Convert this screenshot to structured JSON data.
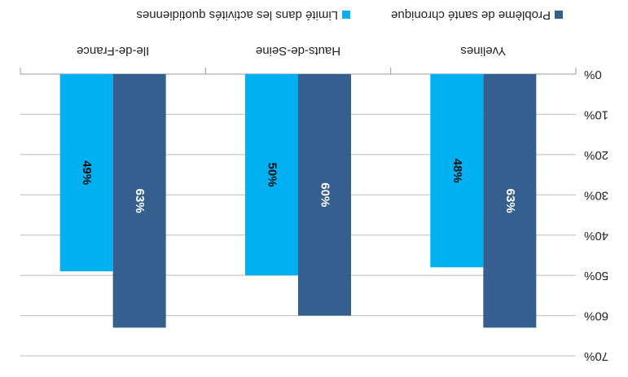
{
  "chart_data": {
    "type": "bar",
    "categories": [
      "Yvelines",
      "Hauts-de-Seine",
      "Ile-de-France"
    ],
    "series": [
      {
        "name": "Problème de santé chronique",
        "color": "#355f8f",
        "values": [
          63,
          60,
          63
        ],
        "value_labels": [
          "63%",
          "60%",
          "63%"
        ]
      },
      {
        "name": "Limité dans les activités quotidiennes",
        "color": "#00b0f0",
        "values": [
          48,
          50,
          49
        ],
        "value_labels": [
          "48%",
          "50%",
          "49%"
        ]
      }
    ],
    "ylim": [
      0,
      70
    ],
    "yticks": [
      {
        "value": 0,
        "label": "0%"
      },
      {
        "value": 10,
        "label": "10%"
      },
      {
        "value": 20,
        "label": "20%"
      },
      {
        "value": 30,
        "label": "30%"
      },
      {
        "value": 40,
        "label": "40%"
      },
      {
        "value": 50,
        "label": "50%"
      },
      {
        "value": 60,
        "label": "60%"
      },
      {
        "value": 70,
        "label": "70%"
      }
    ],
    "grid": true,
    "legend": "bottom",
    "rotation": 180
  }
}
